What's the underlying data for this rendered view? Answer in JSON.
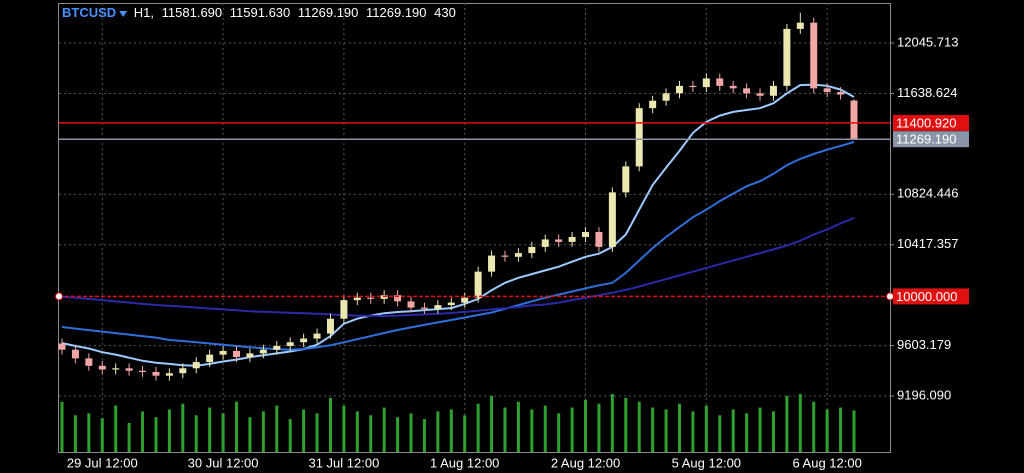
{
  "chart_data": {
    "type": "candlestick",
    "header": {
      "symbol": "BTCUSD",
      "timeframe": "H1,",
      "open": {
        "value": 11581.69,
        "label": "11581.690"
      },
      "high": {
        "value": 11591.63,
        "label": "11591.630"
      },
      "low": {
        "value": 11269.19,
        "label": "11269.190"
      },
      "close": {
        "value": 11269.19,
        "label": "11269.190"
      },
      "volume": 430
    },
    "categories": [
      null,
      null,
      null,
      "29 Jul 12:00",
      null,
      null,
      null,
      null,
      null,
      null,
      null,
      null,
      "30 Jul 12:00",
      null,
      null,
      null,
      null,
      null,
      null,
      null,
      null,
      "31 Jul 12:00",
      null,
      null,
      null,
      null,
      null,
      null,
      null,
      null,
      "1 Aug 12:00",
      null,
      null,
      null,
      null,
      null,
      null,
      null,
      null,
      "2 Aug 12:00",
      null,
      null,
      null,
      null,
      null,
      null,
      null,
      null,
      "5 Aug 12:00",
      null,
      null,
      null,
      null,
      null,
      null,
      null,
      null,
      "6 Aug 12:00",
      null,
      null
    ],
    "open": [
      9620,
      9570,
      9500,
      9440,
      9410,
      9420,
      9400,
      9390,
      9360,
      9380,
      9420,
      9470,
      9530,
      9560,
      9510,
      9540,
      9570,
      9600,
      9630,
      9660,
      9700,
      9820,
      9970,
      9990,
      9980,
      10010,
      9960,
      9910,
      9900,
      9930,
      9950,
      9990,
      10200,
      10330,
      10320,
      10350,
      10400,
      10460,
      10440,
      10480,
      10520,
      10400,
      10840,
      11050,
      11520,
      11580,
      11640,
      11700,
      11690,
      11760,
      11700,
      11680,
      11640,
      11620,
      11700,
      12160,
      12210,
      11680,
      11650,
      11581.69
    ],
    "high": [
      9660,
      9610,
      9540,
      9480,
      9460,
      9460,
      9440,
      9430,
      9420,
      9460,
      9510,
      9570,
      9600,
      9600,
      9580,
      9610,
      9640,
      9670,
      9700,
      9740,
      9860,
      10010,
      10030,
      10030,
      10050,
      10050,
      10000,
      9950,
      9970,
      9990,
      10030,
      10240,
      10370,
      10370,
      10390,
      10440,
      10500,
      10500,
      10520,
      10560,
      10560,
      10880,
      11090,
      11560,
      11620,
      11680,
      11740,
      11740,
      11800,
      11800,
      11740,
      11720,
      11680,
      11740,
      12200,
      12290,
      12250,
      11720,
      11690,
      11591.63
    ],
    "low": [
      9530,
      9460,
      9400,
      9370,
      9370,
      9360,
      9350,
      9320,
      9320,
      9340,
      9380,
      9430,
      9490,
      9470,
      9470,
      9500,
      9530,
      9560,
      9590,
      9620,
      9660,
      9780,
      9930,
      9940,
      9940,
      9920,
      9870,
      9860,
      9860,
      9890,
      9910,
      9950,
      10160,
      10280,
      10280,
      10310,
      10360,
      10400,
      10400,
      10440,
      10360,
      10360,
      10800,
      11010,
      11480,
      11540,
      11600,
      11650,
      11650,
      11660,
      11640,
      11600,
      11580,
      11580,
      11660,
      12120,
      11640,
      11610,
      11590,
      11269.19
    ],
    "close": [
      9570,
      9500,
      9440,
      9410,
      9420,
      9400,
      9390,
      9360,
      9380,
      9420,
      9470,
      9530,
      9560,
      9510,
      9540,
      9570,
      9600,
      9630,
      9660,
      9700,
      9820,
      9970,
      9990,
      9980,
      10010,
      9960,
      9910,
      9900,
      9930,
      9950,
      9990,
      10200,
      10330,
      10320,
      10350,
      10400,
      10460,
      10440,
      10480,
      10520,
      10400,
      10840,
      11050,
      11520,
      11580,
      11640,
      11700,
      11690,
      11760,
      11700,
      11680,
      11640,
      11620,
      11700,
      12160,
      12210,
      11680,
      11650,
      11630,
      11269.19
    ],
    "volume": [
      520,
      380,
      400,
      350,
      480,
      300,
      420,
      360,
      440,
      500,
      380,
      460,
      400,
      520,
      360,
      420,
      480,
      340,
      440,
      400,
      560,
      480,
      420,
      380,
      460,
      360,
      400,
      340,
      420,
      440,
      380,
      500,
      580,
      460,
      520,
      440,
      480,
      400,
      460,
      540,
      500,
      600,
      560,
      520,
      460,
      440,
      500,
      420,
      480,
      380,
      440,
      400,
      460,
      420,
      580,
      600,
      520,
      440,
      460,
      430
    ],
    "up_color": "#ece6b0",
    "down_color": "#f2a7a7",
    "volume_color": "#2fa12f",
    "series": [
      {
        "color": "#9ecbff",
        "values": [
          9624,
          9600,
          9580,
          9550,
          9530,
          9505,
          9480,
          9465,
          9455,
          9445,
          9440,
          9455,
          9475,
          9490,
          9510,
          9525,
          9540,
          9555,
          9575,
          9610,
          9680,
          9780,
          9820,
          9845,
          9865,
          9874,
          9880,
          9890,
          9898,
          9906,
          9940,
          9980,
          10050,
          10110,
          10150,
          10180,
          10210,
          10240,
          10280,
          10320,
          10345,
          10400,
          10500,
          10700,
          10900,
          11040,
          11175,
          11320,
          11410,
          11460,
          11490,
          11505,
          11520,
          11560,
          11640,
          11706,
          11710,
          11700,
          11670,
          11610
        ]
      },
      {
        "color": "#2f6fdc",
        "values": [
          9753,
          9740,
          9728,
          9716,
          9704,
          9692,
          9680,
          9668,
          9648,
          9640,
          9630,
          9620,
          9610,
          9600,
          9590,
          9582,
          9575,
          9570,
          9575,
          9590,
          9606,
          9630,
          9655,
          9680,
          9705,
          9729,
          9750,
          9770,
          9790,
          9810,
          9830,
          9850,
          9870,
          9900,
          9930,
          9960,
          9990,
          10015,
          10040,
          10065,
          10090,
          10110,
          10190,
          10290,
          10390,
          10480,
          10560,
          10640,
          10700,
          10770,
          10830,
          10890,
          10930,
          10990,
          11060,
          11110,
          11150,
          11185,
          11215,
          11247
        ]
      },
      {
        "color": "#2a2aa8",
        "values": [
          9996,
          9990,
          9980,
          9970,
          9960,
          9950,
          9940,
          9931,
          9925,
          9918,
          9910,
          9902,
          9895,
          9888,
          9880,
          9876,
          9872,
          9868,
          9864,
          9860,
          9855,
          9848,
          9845,
          9843,
          9842,
          9845,
          9850,
          9855,
          9860,
          9866,
          9875,
          9885,
          9895,
          9905,
          9915,
          9928,
          9935,
          9950,
          9970,
          9990,
          10010,
          10030,
          10052,
          10080,
          10110,
          10140,
          10170,
          10200,
          10230,
          10260,
          10290,
          10320,
          10350,
          10380,
          10410,
          10450,
          10500,
          10540,
          10590,
          10633
        ]
      }
    ],
    "ylim": [
      8744,
      12369
    ],
    "yticks": [
      {
        "value": 12045.713,
        "label": "12045.713"
      },
      {
        "value": 11638.624,
        "label": "11638.624"
      },
      {
        "value": 10824.446,
        "label": "10824.446"
      },
      {
        "value": 10417.357,
        "label": "10417.357"
      },
      {
        "value": 9603.179,
        "label": "9603.179"
      },
      {
        "value": 9196.09,
        "label": "9196.090"
      }
    ],
    "grid": true,
    "hlines": [
      {
        "value": 11400.92,
        "label": "11400.920",
        "color": "#e01010",
        "style": "solid"
      },
      {
        "value": 10000,
        "label": "10000.000",
        "color": "#e01010",
        "style": "dashed"
      },
      {
        "value": 11269.19,
        "label": "11269.190",
        "color": "#8a96a8",
        "style": "solid"
      }
    ]
  }
}
